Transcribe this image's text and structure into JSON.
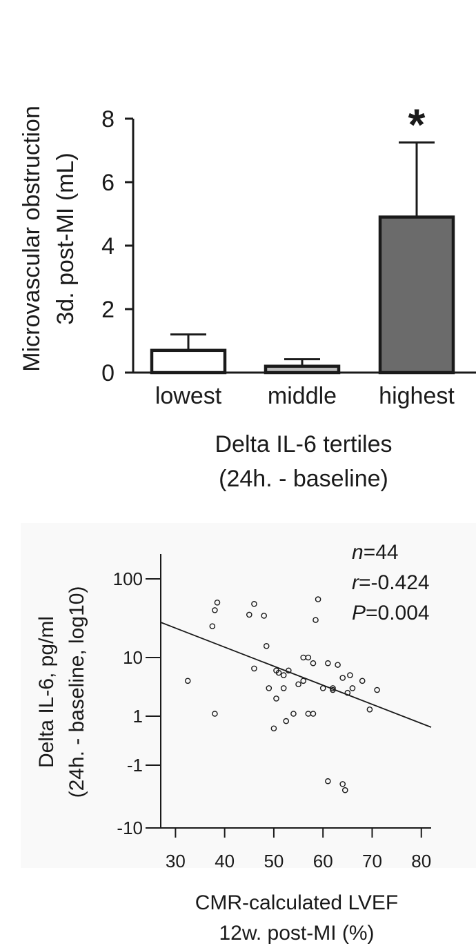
{
  "chart_data": [
    {
      "type": "bar",
      "categories": [
        "lowest",
        "middle",
        "highest"
      ],
      "values": [
        0.7,
        0.2,
        4.9
      ],
      "error_upper": [
        1.2,
        0.42,
        7.25
      ],
      "bar_colors": [
        "#ffffff",
        "#bdbdbd",
        "#6b6b6b"
      ],
      "significance": [
        "",
        "",
        "*"
      ],
      "ylim": [
        0,
        8
      ],
      "yticks": [
        "0",
        "2",
        "4",
        "6",
        "8"
      ],
      "ylabel_line1": "Microvascular obstruction",
      "ylabel_line2": "3d. post-MI (mL)",
      "xlabel_line1": "Delta IL-6 tertiles",
      "xlabel_line2": "(24h. - baseline)"
    },
    {
      "type": "scatter",
      "x": [
        32.5,
        38,
        37.5,
        38.5,
        38,
        45,
        46,
        48,
        46,
        48.5,
        49,
        50.5,
        51,
        52,
        53,
        52,
        54,
        55,
        56,
        56,
        57,
        58,
        58.5,
        59,
        60,
        61,
        62,
        62,
        63,
        64,
        65,
        65.5,
        66,
        68,
        69.5,
        71,
        57,
        58,
        50,
        50.5,
        52.5,
        61,
        64,
        64.5
      ],
      "y": [
        4,
        40,
        25,
        50,
        1.1,
        35,
        48,
        34,
        6.5,
        14,
        3,
        6,
        5.5,
        5,
        6,
        3,
        1.1,
        3.5,
        4,
        10,
        10,
        8,
        30,
        55,
        3,
        8,
        2.8,
        3,
        7.5,
        4.5,
        2.5,
        5,
        3,
        4,
        1.3,
        2.8,
        1.1,
        1.1,
        0.5,
        2,
        0.8,
        -1.8,
        -2,
        -2.5
      ],
      "trendline": {
        "x": [
          27,
          82
        ],
        "y": [
          28,
          0.55
        ]
      },
      "xlim": [
        27,
        82
      ],
      "xticks": [
        "30",
        "40",
        "50",
        "60",
        "70",
        "80"
      ],
      "yticks": [
        "100",
        "10",
        "1",
        "-1",
        "-10"
      ],
      "ylabel_line1": "Delta IL-6, pg/ml",
      "ylabel_line2": "(24h. - baseline, log10)",
      "xlabel_line1": "CMR-calculated LVEF",
      "xlabel_line2": "12w. post-MI (%)",
      "stats": [
        {
          "italic": "n",
          "rest": "=44"
        },
        {
          "italic": "r",
          "rest": "=-0.424"
        },
        {
          "italic": "P",
          "rest": "=0.004"
        }
      ]
    }
  ]
}
